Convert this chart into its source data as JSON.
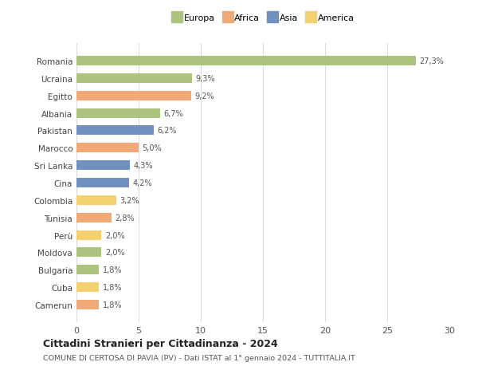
{
  "categories": [
    "Romania",
    "Ucraina",
    "Egitto",
    "Albania",
    "Pakistan",
    "Marocco",
    "Sri Lanka",
    "Cina",
    "Colombia",
    "Tunisia",
    "Perù",
    "Moldova",
    "Bulgaria",
    "Cuba",
    "Camerun"
  ],
  "values": [
    27.3,
    9.3,
    9.2,
    6.7,
    6.2,
    5.0,
    4.3,
    4.2,
    3.2,
    2.8,
    2.0,
    2.0,
    1.8,
    1.8,
    1.8
  ],
  "labels": [
    "27,3%",
    "9,3%",
    "9,2%",
    "6,7%",
    "6,2%",
    "5,0%",
    "4,3%",
    "4,2%",
    "3,2%",
    "2,8%",
    "2,0%",
    "2,0%",
    "1,8%",
    "1,8%",
    "1,8%"
  ],
  "bar_colors": [
    "#adc47e",
    "#adc47e",
    "#f0aa78",
    "#adc47e",
    "#7090c0",
    "#f0aa78",
    "#7090c0",
    "#7090c0",
    "#f5d070",
    "#f0aa78",
    "#f5d070",
    "#adc47e",
    "#adc47e",
    "#f5d070",
    "#f0aa78"
  ],
  "continent_labels": [
    "Europa",
    "Africa",
    "Asia",
    "America"
  ],
  "continent_colors": [
    "#adc47e",
    "#f0aa78",
    "#7090c0",
    "#f5d070"
  ],
  "xlim": [
    0,
    30
  ],
  "xticks": [
    0,
    5,
    10,
    15,
    20,
    25,
    30
  ],
  "title": "Cittadini Stranieri per Cittadinanza - 2024",
  "subtitle": "COMUNE DI CERTOSA DI PAVIA (PV) - Dati ISTAT al 1° gennaio 2024 - TUTTITALIA.IT",
  "background_color": "#ffffff",
  "grid_color": "#d8d8d8"
}
